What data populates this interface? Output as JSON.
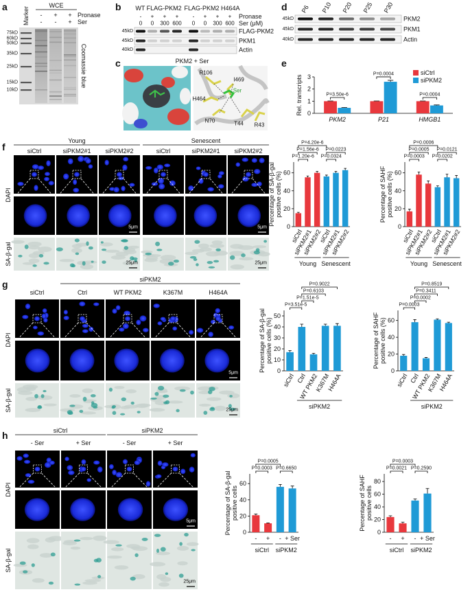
{
  "panel_labels": [
    "a",
    "b",
    "c",
    "d",
    "e",
    "f",
    "g",
    "h"
  ],
  "panel_a": {
    "title": "WCE",
    "marker": "Marker",
    "rows": [
      {
        "name": "Pronase",
        "signs": [
          "-",
          "+",
          "+"
        ]
      },
      {
        "name": "Ser",
        "signs": [
          "-",
          "-",
          "+"
        ]
      }
    ],
    "kd": [
      "75kD",
      "60kD",
      "50kD",
      "35kD",
      "25kD",
      "15kD",
      "10kD"
    ],
    "stain": "Coomassie blue"
  },
  "panel_b": {
    "groups": [
      "WT FLAG-PKM2",
      "FLAG-PKM2 H464A"
    ],
    "rows": [
      {
        "name": "Pronase",
        "signs": [
          "-",
          "+",
          "+",
          "+",
          "-",
          "+",
          "+",
          "+"
        ]
      },
      {
        "name": "Ser (μM)",
        "signs": [
          "0",
          "0",
          "300",
          "600",
          "0",
          "0",
          "300",
          "600"
        ]
      }
    ],
    "blots": [
      {
        "name": "FLAG-PKM2",
        "kd": "45kD"
      },
      {
        "name": "PKM1",
        "kd": "45kD"
      },
      {
        "name": "Actin",
        "kd": "40kD"
      }
    ]
  },
  "panel_c": {
    "title": "PKM2 + Ser",
    "residues": [
      "R106",
      "I469",
      "Ser",
      "H464",
      "N70",
      "T44",
      "R43"
    ]
  },
  "panel_d": {
    "lanes": [
      "P6",
      "P10",
      "P20",
      "P25",
      "P30"
    ],
    "blots": [
      {
        "name": "PKM2",
        "kd": "45kD"
      },
      {
        "name": "PKM1",
        "kd": "45kD"
      },
      {
        "name": "Actin",
        "kd": "40kD"
      }
    ]
  },
  "panel_f": {
    "groups": [
      "Young",
      "Senescent"
    ],
    "columns": [
      "siCtrl",
      "siPKM2#1",
      "siPKM2#2",
      "siCtrl",
      "siPKM2#1",
      "siPKM2#2"
    ],
    "rows": [
      "DAPI",
      "SA-β-gal"
    ],
    "scales": [
      "5μm",
      "5μm",
      "25μm",
      "25μm"
    ]
  },
  "panel_g": {
    "group": "siPKM2",
    "columns": [
      "siCtrl",
      "Ctrl",
      "WT PKM2",
      "K367M",
      "H464A"
    ],
    "rows": [
      "DAPI",
      "SA-β-gal"
    ],
    "scales": [
      "5μm",
      "25μm"
    ]
  },
  "panel_h": {
    "groups": [
      "siCtrl",
      "siPKM2"
    ],
    "columns": [
      "- Ser",
      "+ Ser",
      "- Ser",
      "+ Ser"
    ],
    "rows": [
      "DAPI",
      "SA-β-gal"
    ],
    "scales": [
      "5μm",
      "25μm"
    ]
  },
  "chart_data": [
    {
      "type": "bar",
      "ylabel": [
        "Rel. transcripts"
      ],
      "categories": [
        "PKM2",
        "P21",
        "HMGB1"
      ],
      "series": [
        {
          "name": "siCtrl",
          "color": "#e8383d",
          "values": [
            1,
            1,
            1
          ],
          "errors": [
            0.02,
            0.02,
            0.02
          ]
        },
        {
          "name": "siPKM2",
          "color": "#1f9ad6",
          "values": [
            0.45,
            2.6,
            0.65
          ],
          "errors": [
            0.03,
            0.12,
            0.04
          ]
        }
      ],
      "ylim": [
        0,
        3
      ],
      "yticks": [
        0,
        1,
        2,
        3
      ],
      "annotations": [
        "P=3.50e-6",
        "P=0.0004",
        "P=0.0004"
      ],
      "legend": "upper right"
    },
    {
      "type": "bar",
      "ylabel": [
        "Percentage of SA-β-gal",
        "positive cells (%)"
      ],
      "categories": [
        "siCtrl",
        "siPKM2#1",
        "siPKM2#2",
        "siCtrl",
        "siPKM2#1",
        "siPKM2#2"
      ],
      "values": [
        15,
        55,
        60,
        56,
        60,
        63
      ],
      "errors": [
        1,
        1.5,
        1.5,
        1.5,
        1.5,
        2
      ],
      "colors": [
        "#e8383d",
        "#e8383d",
        "#e8383d",
        "#1f9ad6",
        "#1f9ad6",
        "#1f9ad6"
      ],
      "ylim": [
        0,
        72
      ],
      "yticks": [
        0,
        20,
        40,
        60
      ],
      "annotations": [
        "P=4.20e-6",
        "P=1.56e-6",
        "P=1.20e-6",
        "P=0.0223",
        "P=0.0324"
      ],
      "groups": [
        "Young",
        "Senescent"
      ]
    },
    {
      "type": "bar",
      "ylabel": [
        "Percentage of SAHF",
        "positive cells (%)"
      ],
      "categories": [
        "siCtrl",
        "siPKM2#1",
        "siPKM2#2",
        "siCtrl",
        "siPKM2#1",
        "siPKM2#2"
      ],
      "values": [
        17,
        58,
        48,
        44,
        55,
        54
      ],
      "errors": [
        2.5,
        3,
        3,
        1.5,
        3.5,
        3
      ],
      "colors": [
        "#e8383d",
        "#e8383d",
        "#e8383d",
        "#1f9ad6",
        "#1f9ad6",
        "#1f9ad6"
      ],
      "ylim": [
        0,
        72
      ],
      "yticks": [
        0,
        20,
        40,
        60
      ],
      "annotations": [
        "P=0.0006",
        "P=0.0005",
        "P=0.0003",
        "P=0.0121",
        "P=0.0202"
      ],
      "groups": [
        "Young",
        "Senescent"
      ]
    },
    {
      "type": "bar",
      "ylabel": [
        "Percentage of SA-β-gal",
        "positive cells (%)"
      ],
      "categories": [
        "siCtrl",
        "Ctrl",
        "WT PKM2",
        "K367M",
        "H464A"
      ],
      "values": [
        17,
        40,
        15,
        41,
        41
      ],
      "errors": [
        1.5,
        2.5,
        1,
        1.5,
        2
      ],
      "colors": [
        "#1f9ad6",
        "#1f9ad6",
        "#1f9ad6",
        "#1f9ad6",
        "#1f9ad6"
      ],
      "ylim": [
        0,
        55
      ],
      "yticks": [
        0,
        10,
        20,
        30,
        40,
        50
      ],
      "annotations": [
        "P=0.9022",
        "P=0.6103",
        "P=1.51e-5",
        "P=3.51e-5"
      ],
      "groups": [
        "siPKM2"
      ]
    },
    {
      "type": "bar",
      "ylabel": [
        "Percentage of SAHF",
        "positive cells (%)"
      ],
      "categories": [
        "siCtrl",
        "Ctrl",
        "WT PKM2",
        "K367M",
        "H464A"
      ],
      "values": [
        18,
        58,
        15,
        61,
        57
      ],
      "errors": [
        1.5,
        3,
        1,
        1,
        1
      ],
      "colors": [
        "#1f9ad6",
        "#1f9ad6",
        "#1f9ad6",
        "#1f9ad6",
        "#1f9ad6"
      ],
      "ylim": [
        0,
        72
      ],
      "yticks": [
        0,
        20,
        40,
        60
      ],
      "annotations": [
        "P=0.8519",
        "P=0.3411",
        "P=0.0002",
        "P=0.0003"
      ],
      "groups": [
        "siPKM2"
      ]
    },
    {
      "type": "bar",
      "ylabel": [
        "Percentage of SA-β-gal",
        "positive cells"
      ],
      "categories": [
        "-",
        "+",
        "-",
        "+ Ser"
      ],
      "values": [
        21,
        11,
        56,
        54
      ],
      "errors": [
        1.5,
        0.5,
        3,
        3
      ],
      "colors": [
        "#e8383d",
        "#e8383d",
        "#1f9ad6",
        "#1f9ad6"
      ],
      "ylim": [
        0,
        72
      ],
      "yticks": [
        0,
        20,
        40,
        60
      ],
      "annotations": [
        "P=0.0003",
        "P=0.0005",
        "P=0.6650"
      ],
      "groups": [
        "siCtrl",
        "siPKM2"
      ]
    },
    {
      "type": "bar",
      "ylabel": [
        "Percentage of SAHF",
        "positive cells"
      ],
      "categories": [
        "-",
        "+",
        "-",
        "+ Ser"
      ],
      "values": [
        24,
        14,
        50,
        61
      ],
      "errors": [
        2,
        2,
        2.5,
        8
      ],
      "colors": [
        "#e8383d",
        "#e8383d",
        "#1f9ad6",
        "#1f9ad6"
      ],
      "ylim": [
        0,
        92
      ],
      "yticks": [
        0,
        20,
        40,
        60,
        80
      ],
      "annotations": [
        "P=0.0021",
        "P=0.0003",
        "P=0.2590"
      ],
      "groups": [
        "siCtrl",
        "siPKM2"
      ]
    }
  ]
}
